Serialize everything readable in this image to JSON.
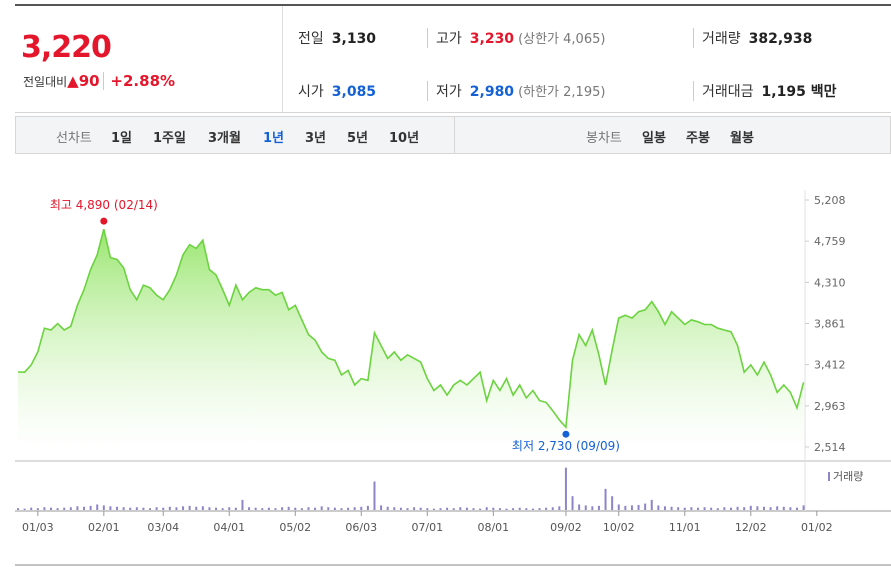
{
  "header": {
    "price": "3,220",
    "change_label": "전일대비",
    "change": "90",
    "change_rate": "+2.88%",
    "items": [
      {
        "label": "전일",
        "value": "3,130"
      },
      {
        "label": "고가",
        "value": "3,230",
        "extra": "(상한가 4,065)"
      },
      {
        "label": "거래량",
        "value": "382,938"
      },
      {
        "label": "시가",
        "value": "3,085"
      },
      {
        "label": "저가",
        "value": "2,980",
        "extra": "(하한가 2,195)"
      },
      {
        "label": "거래대금",
        "value": "1,195 백만"
      }
    ]
  },
  "tabs": {
    "line_label": "선차트",
    "line_periods": [
      "1일",
      "1주일",
      "3개월",
      "1년",
      "3년",
      "5년",
      "10년"
    ],
    "selected": "1년",
    "candle_label": "봉차트",
    "candle_periods": [
      "일봉",
      "주봉",
      "월봉"
    ]
  },
  "chart_data": {
    "type": "line",
    "ylim": [
      2514,
      5208
    ],
    "yticks": [
      {
        "value": 2514,
        "label": "2,514"
      },
      {
        "value": 2963,
        "label": "2,963"
      },
      {
        "value": 3412,
        "label": "3,412"
      },
      {
        "value": 3861,
        "label": "3,861"
      },
      {
        "value": 4310,
        "label": "4,310"
      },
      {
        "value": 4759,
        "label": "4,759"
      },
      {
        "value": 5208,
        "label": "5,208"
      }
    ],
    "xlim": [
      0,
      123
    ],
    "xticks": [
      {
        "value": 3,
        "label": "01/03"
      },
      {
        "value": 13,
        "label": "02/01"
      },
      {
        "value": 22,
        "label": "03/04"
      },
      {
        "value": 32,
        "label": "04/01"
      },
      {
        "value": 42,
        "label": "05/02"
      },
      {
        "value": 52,
        "label": "06/03"
      },
      {
        "value": 62,
        "label": "07/01"
      },
      {
        "value": 72,
        "label": "08/01"
      },
      {
        "value": 83,
        "label": "09/02"
      },
      {
        "value": 91,
        "label": "10/02"
      },
      {
        "value": 101,
        "label": "11/01"
      },
      {
        "value": 111,
        "label": "12/02"
      },
      {
        "value": 121,
        "label": "01/02"
      }
    ],
    "series": [
      {
        "color": "#6bd33f",
        "values": [
          3332,
          3330,
          3410,
          3550,
          3810,
          3790,
          3860,
          3790,
          3830,
          4060,
          4230,
          4450,
          4610,
          4890,
          4580,
          4560,
          4470,
          4230,
          4120,
          4280,
          4250,
          4170,
          4120,
          4230,
          4390,
          4610,
          4720,
          4680,
          4770,
          4450,
          4390,
          4230,
          4060,
          4280,
          4120,
          4200,
          4250,
          4230,
          4230,
          4170,
          4200,
          4010,
          4060,
          3900,
          3740,
          3680,
          3550,
          3480,
          3460,
          3300,
          3350,
          3190,
          3260,
          3240,
          3760,
          3620,
          3480,
          3550,
          3460,
          3520,
          3480,
          3440,
          3260,
          3130,
          3190,
          3080,
          3190,
          3240,
          3190,
          3260,
          3330,
          3020,
          3240,
          3130,
          3260,
          3080,
          3190,
          3050,
          3130,
          3020,
          3000,
          2910,
          2810,
          2730,
          3460,
          3740,
          3620,
          3790,
          3520,
          3190,
          3570,
          3920,
          3950,
          3920,
          3990,
          4010,
          4100,
          3990,
          3850,
          3990,
          3920,
          3850,
          3900,
          3880,
          3850,
          3850,
          3810,
          3790,
          3770,
          3620,
          3330,
          3410,
          3300,
          3440,
          3300,
          3110,
          3190,
          3110,
          2940,
          3220
        ]
      }
    ],
    "volume": {
      "name": "거래량",
      "color": "#8e84c8",
      "y2lim": [
        0,
        100
      ],
      "values": [
        4,
        3,
        5,
        4,
        6,
        5,
        4,
        5,
        6,
        8,
        7,
        9,
        12,
        10,
        8,
        7,
        6,
        5,
        6,
        5,
        4,
        6,
        5,
        7,
        6,
        8,
        9,
        7,
        8,
        6,
        5,
        4,
        6,
        5,
        22,
        6,
        5,
        4,
        5,
        4,
        6,
        7,
        5,
        4,
        6,
        5,
        8,
        6,
        5,
        4,
        5,
        6,
        7,
        9,
        62,
        10,
        7,
        6,
        5,
        4,
        6,
        5,
        4,
        3,
        4,
        5,
        4,
        6,
        5,
        4,
        3,
        6,
        5,
        4,
        3,
        4,
        5,
        4,
        3,
        4,
        5,
        6,
        8,
        92,
        30,
        12,
        10,
        8,
        9,
        46,
        30,
        12,
        9,
        10,
        11,
        14,
        22,
        10,
        8,
        7,
        6,
        5,
        6,
        5,
        6,
        5,
        4,
        6,
        5,
        7,
        6,
        9,
        8,
        7,
        6,
        8,
        7,
        6,
        5,
        10
      ]
    },
    "annotations": [
      {
        "text": "최고 4,890 (02/14)",
        "index": 13
      },
      {
        "text": "최저 2,730 (09/09)",
        "index": 83
      }
    ]
  }
}
